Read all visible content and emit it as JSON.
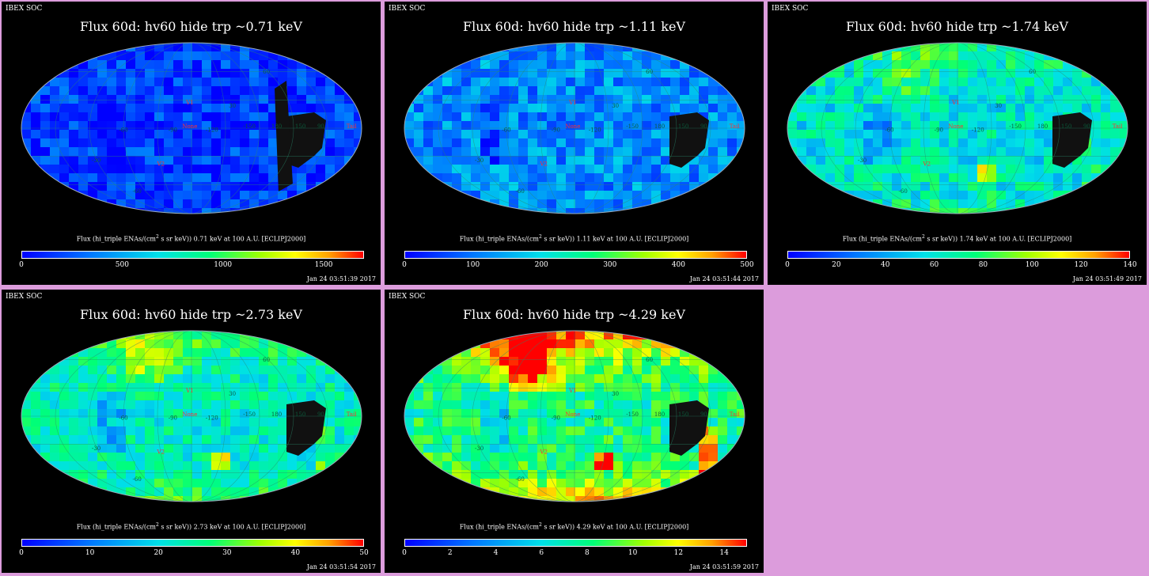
{
  "panels": [
    {
      "header": "IBEX SOC",
      "title": "Flux   60d: hv60 hide trp ~0.71 keV",
      "caption_pre": "Flux (hi_triple ENAs/(cm",
      "caption_sup": "2",
      "caption_post": " s sr keV))  0.71 keV at 100 A.U. [ECLIPJ2000]",
      "timestamp": "Jan 24 03:51:39 2017",
      "colorbar": {
        "min": 0,
        "max": 1700,
        "ticks": [
          "0",
          "500",
          "1000",
          "1500"
        ],
        "tick_values": [
          0,
          500,
          1000,
          1500
        ]
      },
      "map_labels": [
        "60",
        "30",
        "V1",
        "90",
        "None",
        "-150",
        "-120",
        "-90",
        "-60",
        "180",
        "150",
        "Tail",
        "V2",
        "-30",
        "-60"
      ],
      "map_style": {
        "base": 0.1,
        "spread": 0.12,
        "hot": 0.0,
        "hotspot": 0.0
      }
    },
    {
      "header": "IBEX SOC",
      "title": "Flux   60d: hv60 hide trp ~1.11 keV",
      "caption_pre": "Flux (hi_triple ENAs/(cm",
      "caption_sup": "2",
      "caption_post": " s sr keV))  1.11 keV at 100 A.U. [ECLIPJ2000]",
      "timestamp": "Jan 24 03:51:44 2017",
      "colorbar": {
        "min": 0,
        "max": 500,
        "ticks": [
          "0",
          "100",
          "200",
          "300",
          "400",
          "500"
        ],
        "tick_values": [
          0,
          100,
          200,
          300,
          400,
          500
        ]
      },
      "map_labels": [
        "60",
        "30",
        "V1",
        "90",
        "None",
        "-150",
        "-120",
        "-90",
        "-60",
        "180",
        "150",
        "Tail",
        "V2",
        "-30",
        "-60"
      ],
      "map_style": {
        "base": 0.24,
        "spread": 0.14,
        "hot": 0.0,
        "hotspot": 0.05
      }
    },
    {
      "header": "IBEX SOC",
      "title": "Flux   60d: hv60 hide trp ~1.74 keV",
      "caption_pre": "Flux (hi_triple ENAs/(cm",
      "caption_sup": "2",
      "caption_post": " s sr keV))  1.74 keV at 100 A.U. [ECLIPJ2000]",
      "timestamp": "Jan 24 03:51:49 2017",
      "colorbar": {
        "min": 0,
        "max": 140,
        "ticks": [
          "0",
          "20",
          "40",
          "60",
          "80",
          "100",
          "120",
          "140"
        ],
        "tick_values": [
          0,
          20,
          40,
          60,
          80,
          100,
          120,
          140
        ]
      },
      "map_labels": [
        "60",
        "30",
        "V1",
        "90",
        "None",
        "-150",
        "-120",
        "-90",
        "-60",
        "180",
        "150",
        "Tail",
        "V2",
        "-30",
        "-60"
      ],
      "map_style": {
        "base": 0.42,
        "spread": 0.14,
        "hot": 0.05,
        "hotspot": 0.9
      }
    },
    {
      "header": "IBEX SOC",
      "title": "Flux   60d: hv60 hide trp ~2.73 keV",
      "caption_pre": "Flux (hi_triple ENAs/(cm",
      "caption_sup": "2",
      "caption_post": " s sr keV))  2.73 keV at 100 A.U. [ECLIPJ2000]",
      "timestamp": "Jan 24 03:51:54 2017",
      "colorbar": {
        "min": 0,
        "max": 50,
        "ticks": [
          "0",
          "10",
          "20",
          "30",
          "40",
          "50"
        ],
        "tick_values": [
          0,
          10,
          20,
          30,
          40,
          50
        ]
      },
      "map_labels": [
        "60",
        "30",
        "V1",
        "90",
        "None",
        "-150",
        "-120",
        "-90",
        "-60",
        "180",
        "150",
        "Tail",
        "V2",
        "-30",
        "-60"
      ],
      "map_style": {
        "base": 0.45,
        "spread": 0.12,
        "hot": 0.08,
        "hotspot": 0.7
      }
    },
    {
      "header": "IBEX SOC",
      "title": "Flux   60d: hv60 hide trp ~4.29 keV",
      "caption_pre": "Flux (hi_triple ENAs/(cm",
      "caption_sup": "2",
      "caption_post": " s sr keV))  4.29 keV at 100 A.U. [ECLIPJ2000]",
      "timestamp": "Jan 24 03:51:59 2017",
      "colorbar": {
        "min": 0,
        "max": 15,
        "ticks": [
          "0",
          "2",
          "4",
          "6",
          "8",
          "10",
          "12",
          "14"
        ],
        "tick_values": [
          0,
          2,
          4,
          6,
          8,
          10,
          12,
          14
        ]
      },
      "map_labels": [
        "60",
        "30",
        "V1",
        "90",
        "None",
        "-150",
        "-120",
        "-90",
        "-60",
        "180",
        "150",
        "Tail",
        "V2",
        "-30",
        "-60"
      ],
      "map_style": {
        "base": 0.52,
        "spread": 0.14,
        "hot": 0.2,
        "hotspot": 1.0
      }
    }
  ],
  "chart_data": [
    {
      "type": "heatmap",
      "title": "Flux   60d: hv60 hide trp ~0.71 keV",
      "colorbar_range": [
        0,
        1700
      ],
      "colorbar_ticks": [
        0,
        500,
        1000,
        1500
      ]
    },
    {
      "type": "heatmap",
      "title": "Flux   60d: hv60 hide trp ~1.11 keV",
      "colorbar_range": [
        0,
        500
      ],
      "colorbar_ticks": [
        0,
        100,
        200,
        300,
        400,
        500
      ]
    },
    {
      "type": "heatmap",
      "title": "Flux   60d: hv60 hide trp ~1.74 keV",
      "colorbar_range": [
        0,
        140
      ],
      "colorbar_ticks": [
        0,
        20,
        40,
        60,
        80,
        100,
        120,
        140
      ]
    },
    {
      "type": "heatmap",
      "title": "Flux   60d: hv60 hide trp ~2.73 keV",
      "colorbar_range": [
        0,
        50
      ],
      "colorbar_ticks": [
        0,
        10,
        20,
        30,
        40,
        50
      ]
    },
    {
      "type": "heatmap",
      "title": "Flux   60d: hv60 hide trp ~4.29 keV",
      "colorbar_range": [
        0,
        15
      ],
      "colorbar_ticks": [
        0,
        2,
        4,
        6,
        8,
        10,
        12,
        14
      ]
    }
  ],
  "colors": {
    "background": "#dc9cdc",
    "panel": "#000000",
    "label": "#ff3030",
    "grid": "#2a8a6a"
  }
}
